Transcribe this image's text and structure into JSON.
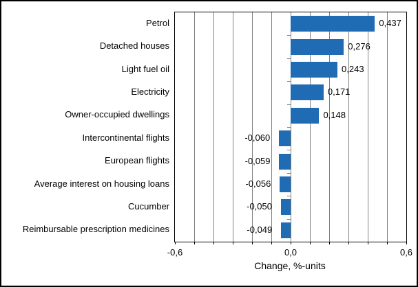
{
  "chart_data": {
    "type": "bar",
    "orientation": "horizontal",
    "title": "",
    "categories": [
      "Petrol",
      "Detached houses",
      "Light fuel oil",
      "Electricity",
      "Owner-occupied dwellings",
      "Intercontinental flights",
      "European flights",
      "Average interest on housing loans",
      "Cucumber",
      "Reimbursable prescription medicines"
    ],
    "values": [
      0.437,
      0.276,
      0.243,
      0.171,
      0.148,
      -0.06,
      -0.059,
      -0.056,
      -0.05,
      -0.049
    ],
    "value_labels": [
      "0,437",
      "0,276",
      "0,243",
      "0,171",
      "0,148",
      "-0,060",
      "-0,059",
      "-0,056",
      "-0,050",
      "-0,049"
    ],
    "xlabel": "Change, %-units",
    "xlim": [
      -0.6,
      0.6
    ],
    "grid_interval": 0.1,
    "grid": "vertical-only",
    "legend": "none",
    "xticks": [
      {
        "value": -0.6,
        "label": "-0,6"
      },
      {
        "value": 0.0,
        "label": "0,0"
      },
      {
        "value": 0.6,
        "label": "0,6"
      }
    ],
    "colors": {
      "bar": "#1f6bb4",
      "gridline": "#808080",
      "axis": "#000000",
      "text": "#000000",
      "background": "#ffffff"
    }
  }
}
